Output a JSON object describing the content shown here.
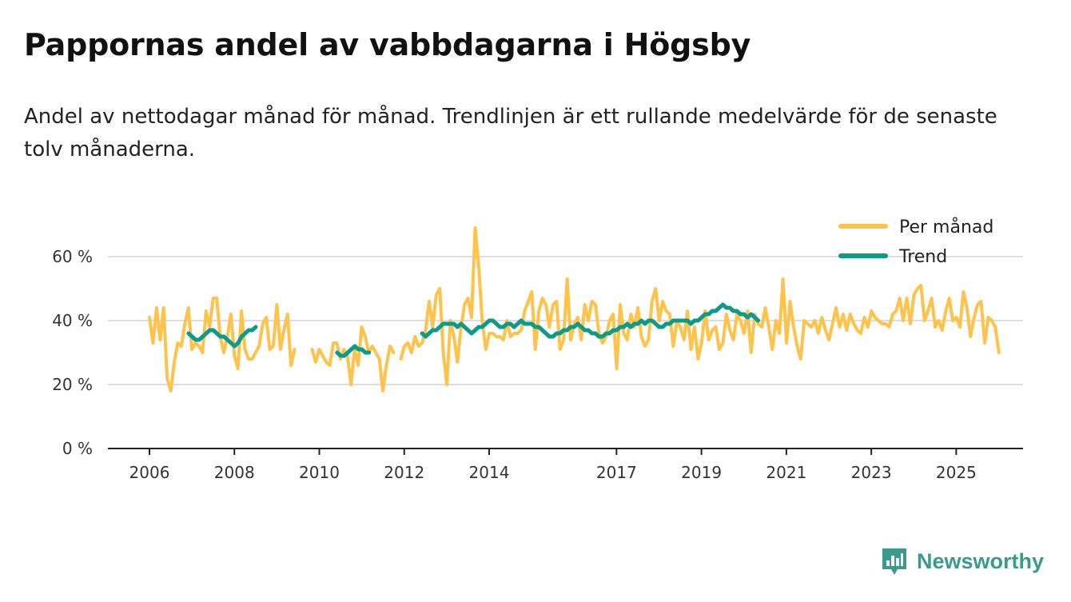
{
  "title": "Pappornas andel av vabbdagarna i Högsby",
  "subtitle": "Andel av nettodagar månad för månad. Trendlinjen är ett rullande medelvärde för de senaste tolv månaderna.",
  "brand": "Newsworthy",
  "colors": {
    "monthly": "#ffc24b",
    "trend": "#0c9a8a",
    "grid": "#dddddd",
    "axis": "#222222"
  },
  "chart_data": {
    "type": "line",
    "x_unit": "decimal year",
    "ylim": [
      0,
      68
    ],
    "xlim": [
      2005.1,
      2026.3
    ],
    "y_ticks": [
      {
        "value": 0,
        "label": "0 %"
      },
      {
        "value": 20,
        "label": "20 %"
      },
      {
        "value": 40,
        "label": "40 %"
      },
      {
        "value": 60,
        "label": "60 %"
      }
    ],
    "x_ticks": [
      {
        "value": 2006,
        "label": "2006"
      },
      {
        "value": 2008,
        "label": "2008"
      },
      {
        "value": 2010,
        "label": "2010"
      },
      {
        "value": 2012,
        "label": "2012"
      },
      {
        "value": 2014,
        "label": "2014"
      },
      {
        "value": 2017,
        "label": "2017"
      },
      {
        "value": 2019,
        "label": "2019"
      },
      {
        "value": 2021,
        "label": "2021"
      },
      {
        "value": 2023,
        "label": "2023"
      },
      {
        "value": 2025,
        "label": "2025"
      }
    ],
    "legend": {
      "position": "top-right",
      "entries": [
        "Per månad",
        "Trend"
      ]
    },
    "series": [
      {
        "name": "Per månad",
        "segments": [
          {
            "start": 2006.0,
            "values": [
              41,
              33,
              44,
              34,
              44,
              22,
              18,
              27,
              33,
              32,
              39,
              44,
              31,
              33,
              32,
              30,
              43,
              38,
              47,
              47,
              35,
              30,
              35,
              42,
              29,
              25,
              43,
              31,
              28,
              28,
              30,
              32,
              39,
              41,
              31,
              32,
              45,
              31,
              37,
              42,
              26,
              31
            ]
          },
          {
            "start": 2009.83,
            "values": [
              31,
              27,
              31,
              29,
              27,
              26,
              33,
              33,
              28,
              31,
              29,
              20,
              31,
              26,
              38,
              35,
              30,
              32,
              30,
              28,
              18,
              26,
              32,
              30
            ]
          },
          {
            "start": 2011.92,
            "values": [
              28,
              32,
              33,
              30,
              35,
              32,
              33,
              37,
              46,
              38,
              48,
              50,
              30,
              20,
              40,
              35,
              27,
              38,
              45,
              47,
              41,
              69,
              57,
              40,
              31,
              36,
              36,
              35,
              35,
              34,
              40,
              35,
              36,
              36,
              37,
              43,
              46,
              49,
              31,
              43,
              47,
              45,
              38,
              45,
              46,
              31,
              34,
              53,
              34,
              39,
              41,
              34,
              45,
              40,
              46,
              45,
              36,
              33,
              35,
              40,
              42,
              25,
              45,
              36,
              34,
              42,
              38,
              44,
              35,
              32,
              34,
              46,
              50,
              40,
              46,
              43,
              42,
              32,
              40,
              38,
              34,
              43,
              31,
              38,
              28,
              33,
              43,
              34,
              37,
              38,
              31,
              33,
              42,
              37,
              34,
              42,
              40,
              36,
              43,
              30,
              42,
              39,
              38,
              44,
              38,
              31,
              40,
              36,
              53,
              33,
              46,
              38,
              32,
              28,
              40,
              39,
              38,
              40,
              36,
              41,
              37,
              34,
              39,
              44,
              38,
              42,
              37,
              42,
              39,
              37,
              36,
              41,
              38,
              43,
              41,
              40,
              39,
              39,
              38,
              42,
              43,
              47,
              40,
              47,
              39,
              48,
              50,
              51,
              40,
              43,
              47,
              38,
              40,
              37,
              43,
              47,
              40,
              41,
              38,
              49,
              44,
              35,
              41,
              45,
              46,
              33,
              41,
              40,
              38,
              30
            ]
          }
        ]
      },
      {
        "name": "Trend",
        "segments": [
          {
            "start": 2006.92,
            "values": [
              36,
              35,
              34,
              34,
              35,
              36,
              37,
              37,
              36,
              35,
              35,
              34,
              33,
              32,
              33,
              35,
              36,
              37,
              37,
              38
            ]
          },
          {
            "start": 2010.42,
            "values": [
              30,
              29,
              29,
              30,
              31,
              32,
              31,
              31,
              30,
              30
            ]
          },
          {
            "start": 2012.42,
            "values": [
              36,
              35,
              36,
              37,
              37,
              38,
              39,
              39,
              39,
              39,
              38,
              39,
              38,
              37,
              36,
              37,
              38,
              38,
              39,
              40,
              40,
              39,
              38,
              38,
              39,
              39,
              38,
              39,
              40,
              39,
              39,
              39,
              38,
              38,
              37,
              36,
              35,
              35,
              36,
              36,
              37,
              37,
              38,
              38,
              39,
              38,
              37,
              37,
              36,
              36,
              35,
              35,
              36,
              36,
              37,
              37,
              38,
              38,
              39,
              38,
              39,
              39,
              40,
              39,
              40,
              40,
              39,
              38,
              38,
              39,
              39,
              40,
              40,
              40,
              40,
              40,
              39,
              40,
              40,
              41,
              42,
              42,
              43,
              43,
              44,
              45,
              44,
              44,
              43,
              43,
              42,
              42,
              41,
              42,
              41,
              40
            ]
          }
        ]
      }
    ]
  }
}
